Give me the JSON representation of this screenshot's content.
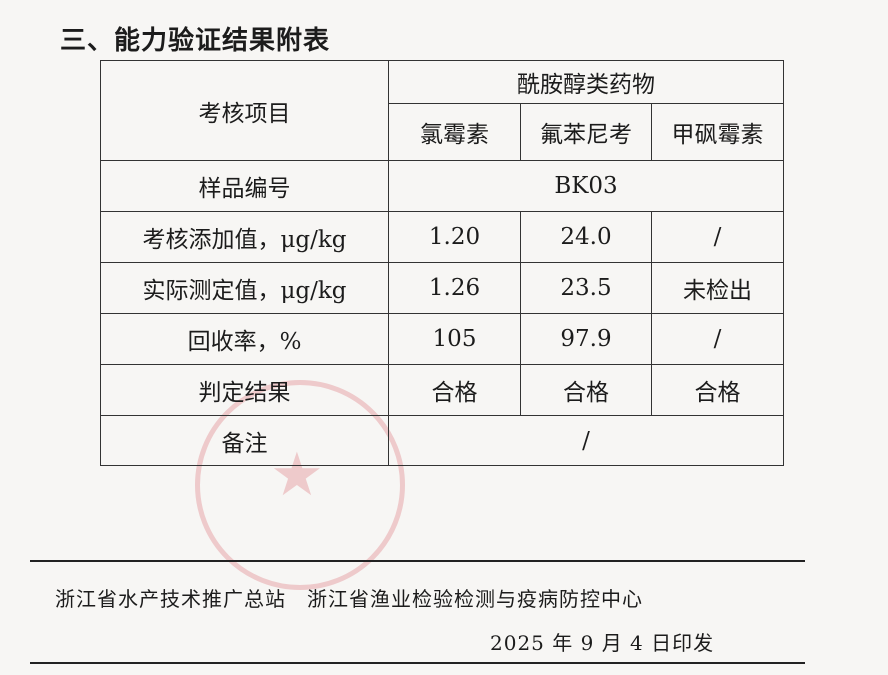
{
  "heading": "三、能力验证结果附表",
  "table": {
    "item_header": "考核项目",
    "group_header": "酰胺醇类药物",
    "drugs": [
      "氯霉素",
      "氟苯尼考",
      "甲砜霉素"
    ],
    "sample_row": {
      "label": "样品编号",
      "value": "BK03"
    },
    "rows": [
      {
        "label": "考核添加值，μg/kg",
        "values": [
          "1.20",
          "24.0",
          "/"
        ]
      },
      {
        "label": "实际测定值，μg/kg",
        "values": [
          "1.26",
          "23.5",
          "未检出"
        ]
      },
      {
        "label": "回收率，%",
        "values": [
          "105",
          "97.9",
          "/"
        ]
      },
      {
        "label": "判定结果",
        "values": [
          "合格",
          "合格",
          "合格"
        ]
      }
    ],
    "note_row": {
      "label": "备注",
      "value": "/"
    }
  },
  "footer": {
    "issuers": "浙江省水产技术推广总站　浙江省渔业检验检测与疫病防控中心",
    "date": "2025 年 9 月 4 日印发"
  },
  "colors": {
    "stamp": "#d24650"
  }
}
